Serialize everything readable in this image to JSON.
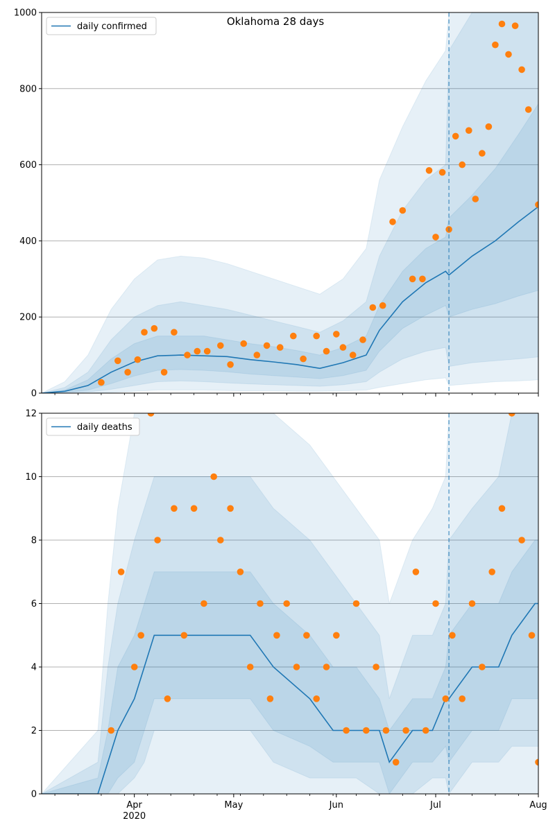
{
  "figure_title": "Oklahoma 28 days",
  "colors": {
    "line": "#1f77b4",
    "points": "#ff7f0e",
    "band": "#1f77b4",
    "grid": "#b0b0b0"
  },
  "x_axis": {
    "start": "2020-03-04",
    "end": "2020-08-01",
    "forecast_start": "2020-07-05",
    "major_ticks": [
      {
        "date": "2020-04-01",
        "label": "Apr",
        "sublabel": "2020"
      },
      {
        "date": "2020-05-01",
        "label": "May",
        "sublabel": ""
      },
      {
        "date": "2020-06-01",
        "label": "Jun",
        "sublabel": ""
      },
      {
        "date": "2020-07-01",
        "label": "Jul",
        "sublabel": ""
      },
      {
        "date": "2020-08-01",
        "label": "Aug",
        "sublabel": ""
      }
    ],
    "minor_tick_dates": [
      "2020-03-08",
      "2020-03-15",
      "2020-03-22",
      "2020-03-29",
      "2020-04-05",
      "2020-04-12",
      "2020-04-19",
      "2020-04-26",
      "2020-05-03",
      "2020-05-10",
      "2020-05-17",
      "2020-05-24",
      "2020-05-31",
      "2020-06-07",
      "2020-06-14",
      "2020-06-21",
      "2020-06-28",
      "2020-07-05",
      "2020-07-12",
      "2020-07-19",
      "2020-07-26"
    ]
  },
  "chart_data": [
    {
      "type": "line",
      "title": "Oklahoma 28 days",
      "legend": "daily confirmed",
      "legend_position": "top-left",
      "grid": true,
      "ylim": [
        0,
        1000
      ],
      "yticks": [
        0,
        200,
        400,
        600,
        800,
        1000
      ],
      "x": [
        "2020-03-04",
        "2020-03-11",
        "2020-03-18",
        "2020-03-25",
        "2020-04-01",
        "2020-04-08",
        "2020-04-15",
        "2020-04-22",
        "2020-04-29",
        "2020-05-06",
        "2020-05-13",
        "2020-05-20",
        "2020-05-27",
        "2020-06-03",
        "2020-06-10",
        "2020-06-14",
        "2020-06-21",
        "2020-06-28",
        "2020-07-04",
        "2020-07-05",
        "2020-07-12",
        "2020-07-19",
        "2020-07-26",
        "2020-08-01"
      ],
      "series": [
        {
          "name": "daily confirmed",
          "values": [
            0,
            5,
            20,
            55,
            82,
            98,
            100,
            98,
            96,
            88,
            82,
            75,
            65,
            80,
            100,
            165,
            240,
            290,
            320,
            310,
            360,
            400,
            450,
            490
          ]
        }
      ],
      "bands": [
        {
          "lower": [
            0,
            2,
            8,
            25,
            45,
            60,
            62,
            60,
            56,
            50,
            46,
            42,
            38,
            46,
            60,
            110,
            170,
            205,
            230,
            200,
            220,
            235,
            255,
            270
          ],
          "upper": [
            0,
            8,
            35,
            90,
            130,
            150,
            150,
            150,
            140,
            130,
            122,
            112,
            100,
            120,
            150,
            230,
            320,
            380,
            410,
            460,
            520,
            590,
            680,
            760
          ]
        },
        {
          "lower": [
            0,
            1,
            3,
            10,
            20,
            30,
            32,
            30,
            27,
            24,
            22,
            20,
            18,
            22,
            30,
            55,
            90,
            110,
            120,
            70,
            80,
            85,
            90,
            95
          ],
          "upper": [
            0,
            15,
            55,
            140,
            200,
            230,
            240,
            230,
            220,
            205,
            190,
            175,
            160,
            190,
            240,
            360,
            480,
            560,
            600,
            900,
            1000,
            1000,
            1000,
            1000
          ]
        },
        {
          "lower": [
            0,
            0,
            0,
            2,
            5,
            8,
            8,
            8,
            7,
            6,
            6,
            5,
            5,
            6,
            8,
            15,
            25,
            35,
            40,
            20,
            25,
            30,
            32,
            35
          ],
          "upper": [
            0,
            30,
            100,
            220,
            300,
            350,
            360,
            355,
            340,
            320,
            300,
            280,
            260,
            300,
            380,
            560,
            700,
            820,
            900,
            1000,
            1000,
            1000,
            1000,
            1000
          ]
        }
      ],
      "points": {
        "x": [
          "2020-03-22",
          "2020-03-27",
          "2020-03-30",
          "2020-04-02",
          "2020-04-04",
          "2020-04-07",
          "2020-04-10",
          "2020-04-13",
          "2020-04-17",
          "2020-04-20",
          "2020-04-23",
          "2020-04-27",
          "2020-04-30",
          "2020-05-04",
          "2020-05-08",
          "2020-05-11",
          "2020-05-15",
          "2020-05-19",
          "2020-05-22",
          "2020-05-26",
          "2020-05-29",
          "2020-06-01",
          "2020-06-03",
          "2020-06-06",
          "2020-06-09",
          "2020-06-12",
          "2020-06-15",
          "2020-06-18",
          "2020-06-21",
          "2020-06-24",
          "2020-06-27",
          "2020-06-29",
          "2020-07-01",
          "2020-07-03",
          "2020-07-05",
          "2020-07-07",
          "2020-07-09",
          "2020-07-11",
          "2020-07-13",
          "2020-07-15",
          "2020-07-17",
          "2020-07-19",
          "2020-07-21",
          "2020-07-23",
          "2020-07-25",
          "2020-07-27",
          "2020-07-29",
          "2020-08-01"
        ],
        "values": [
          28,
          85,
          55,
          88,
          160,
          170,
          55,
          160,
          100,
          110,
          110,
          125,
          75,
          130,
          100,
          125,
          120,
          150,
          90,
          150,
          110,
          155,
          120,
          100,
          140,
          225,
          230,
          450,
          480,
          300,
          300,
          585,
          410,
          580,
          430,
          675,
          600,
          690,
          510,
          630,
          700,
          915,
          970,
          890,
          965,
          850,
          745,
          495
        ]
      }
    },
    {
      "type": "line",
      "title": "",
      "legend": "daily deaths",
      "legend_position": "top-left",
      "grid": true,
      "ylim": [
        0,
        12
      ],
      "yticks": [
        0,
        2,
        4,
        6,
        8,
        10,
        12
      ],
      "x": [
        "2020-03-04",
        "2020-03-21",
        "2020-03-24",
        "2020-03-27",
        "2020-04-01",
        "2020-04-04",
        "2020-04-07",
        "2020-04-18",
        "2020-04-24",
        "2020-05-06",
        "2020-05-13",
        "2020-05-24",
        "2020-05-31",
        "2020-06-07",
        "2020-06-14",
        "2020-06-17",
        "2020-06-24",
        "2020-06-30",
        "2020-07-04",
        "2020-07-05",
        "2020-07-12",
        "2020-07-20",
        "2020-07-24",
        "2020-07-31",
        "2020-08-01"
      ],
      "series": [
        {
          "name": "daily deaths",
          "values": [
            0,
            0,
            1,
            2,
            3,
            4,
            5,
            5,
            5,
            5,
            4,
            3,
            2,
            2,
            2,
            1,
            2,
            2,
            3,
            3,
            4,
            4,
            5,
            6,
            6
          ]
        }
      ],
      "bands": [
        {
          "lower": [
            0,
            0,
            0,
            0.5,
            1,
            2,
            3,
            3,
            3,
            3,
            2,
            1.5,
            1,
            1,
            1,
            0,
            1,
            1,
            1.5,
            1,
            2,
            2,
            3,
            3,
            3
          ],
          "upper": [
            0,
            0.5,
            2,
            4,
            5,
            6,
            7,
            7,
            7,
            7,
            6,
            5,
            4,
            4,
            3,
            2,
            3,
            3,
            4,
            5,
            6,
            6,
            7,
            8,
            8
          ]
        },
        {
          "lower": [
            0,
            0,
            0,
            0,
            0.5,
            1,
            2,
            2,
            2,
            2,
            1,
            0.5,
            0.5,
            0.5,
            0,
            0,
            0,
            0.5,
            0.5,
            0,
            1,
            1,
            1.5,
            1.5,
            1.5
          ],
          "upper": [
            0,
            1,
            4,
            6,
            8,
            9,
            10,
            10,
            10,
            10,
            9,
            8,
            7,
            6,
            5,
            3,
            5,
            5,
            6,
            8,
            9,
            10,
            12,
            12,
            12
          ]
        },
        {
          "lower": [
            0,
            0,
            0,
            0,
            0,
            0,
            0,
            0,
            0,
            0,
            0,
            0,
            0,
            0,
            0,
            0,
            0,
            0,
            0,
            0,
            0,
            0,
            0,
            0,
            0
          ],
          "upper": [
            0,
            2,
            6,
            9,
            12,
            12,
            12,
            12,
            12,
            12,
            12,
            11,
            10,
            9,
            8,
            6,
            8,
            9,
            10,
            12,
            12,
            12,
            12,
            12,
            12
          ]
        }
      ],
      "points": {
        "x": [
          "2020-03-25",
          "2020-03-28",
          "2020-04-01",
          "2020-04-03",
          "2020-04-06",
          "2020-04-08",
          "2020-04-11",
          "2020-04-13",
          "2020-04-16",
          "2020-04-19",
          "2020-04-22",
          "2020-04-25",
          "2020-04-27",
          "2020-04-30",
          "2020-05-03",
          "2020-05-06",
          "2020-05-09",
          "2020-05-12",
          "2020-05-14",
          "2020-05-17",
          "2020-05-20",
          "2020-05-23",
          "2020-05-26",
          "2020-05-29",
          "2020-06-01",
          "2020-06-04",
          "2020-06-07",
          "2020-06-10",
          "2020-06-13",
          "2020-06-16",
          "2020-06-19",
          "2020-06-22",
          "2020-06-25",
          "2020-06-28",
          "2020-07-01",
          "2020-07-04",
          "2020-07-06",
          "2020-07-09",
          "2020-07-12",
          "2020-07-15",
          "2020-07-18",
          "2020-07-21",
          "2020-07-24",
          "2020-07-27",
          "2020-07-30",
          "2020-08-01"
        ],
        "values": [
          2,
          7,
          4,
          5,
          12,
          8,
          3,
          9,
          5,
          9,
          6,
          10,
          8,
          9,
          7,
          4,
          6,
          3,
          5,
          6,
          4,
          5,
          3,
          4,
          5,
          2,
          6,
          2,
          4,
          2,
          1,
          2,
          7,
          2,
          6,
          3,
          5,
          3,
          6,
          4,
          7,
          9,
          12,
          8,
          5,
          1
        ]
      }
    }
  ]
}
